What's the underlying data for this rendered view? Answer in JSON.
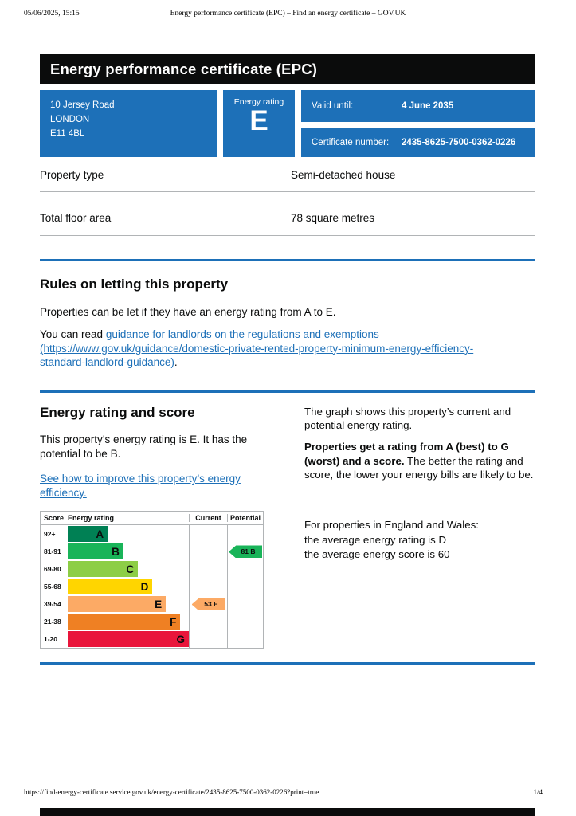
{
  "print_header": {
    "datetime": "05/06/2025, 15:15",
    "title": "Energy performance certificate (EPC) – Find an energy certificate – GOV.UK"
  },
  "print_footer": {
    "url": "https://find-energy-certificate.service.gov.uk/energy-certificate/2435-8625-7500-0362-0226?print=true",
    "page": "1/4"
  },
  "banner": {
    "title": "Energy performance certificate (EPC)"
  },
  "property_summary": {
    "address_lines": [
      "10 Jersey Road",
      "LONDON",
      "E11 4BL"
    ],
    "energy_rating_label": "Energy rating",
    "energy_rating": "E",
    "valid_until_label": "Valid until:",
    "valid_until": "4 June 2035",
    "certificate_number_label": "Certificate number:",
    "certificate_number": "2435-8625-7500-0362-0226",
    "rows": [
      {
        "label": "Property type",
        "value": "Semi-detached house"
      },
      {
        "label": "Total floor area",
        "value": "78 square metres"
      }
    ]
  },
  "rules": {
    "heading": "Rules on letting this property",
    "para1": "Properties can be let if they have an energy rating from A to E.",
    "para2_prefix": "You can read ",
    "link_text": "guidance for landlords on the regulations and exemptions (https://www.gov.uk/guidance/domestic-private-rented-property-minimum-energy-efficiency-standard-landlord-guidance)",
    "para2_suffix": "."
  },
  "rating": {
    "heading": "Energy rating and score",
    "para1": "This property’s energy rating is E. It has the potential to be B.",
    "improve_link": "See how to improve this property’s energy efficiency.",
    "right_para1": "The graph shows this property’s current and potential energy rating.",
    "right_para2_bold": "Properties get a rating from A (best) to G (worst) and a score.",
    "right_para2_rest": " The better the rating and score, the lower your energy bills are likely to be.",
    "right_para3": "For properties in England and Wales:",
    "right_para4": "the average energy rating is D",
    "right_para5": "the average energy score is 60"
  },
  "chart_data": {
    "type": "epc-rating-chart",
    "columns": {
      "score": "Score",
      "band": "Energy rating",
      "current": "Current",
      "potential": "Potential"
    },
    "bands": [
      {
        "score": "92+",
        "letter": "A",
        "color": "#008054",
        "width_pct": 33
      },
      {
        "score": "81-91",
        "letter": "B",
        "color": "#19b459",
        "width_pct": 46
      },
      {
        "score": "69-80",
        "letter": "C",
        "color": "#8dce46",
        "width_pct": 58
      },
      {
        "score": "55-68",
        "letter": "D",
        "color": "#ffd500",
        "width_pct": 70
      },
      {
        "score": "39-54",
        "letter": "E",
        "color": "#fcaa65",
        "width_pct": 81
      },
      {
        "score": "21-38",
        "letter": "F",
        "color": "#ef8023",
        "width_pct": 93
      },
      {
        "score": "1-20",
        "letter": "G",
        "color": "#e9153b",
        "width_pct": 100
      }
    ],
    "current": {
      "label": "53 E",
      "band": "E",
      "score": 53,
      "color": "#fcaa65"
    },
    "potential": {
      "label": "81 B",
      "band": "B",
      "score": 81,
      "color": "#19b459"
    }
  },
  "colors": {
    "govuk_blue": "#1d70b8",
    "banner_black": "#0b0c0c",
    "border_grey": "#b1b4b6"
  }
}
